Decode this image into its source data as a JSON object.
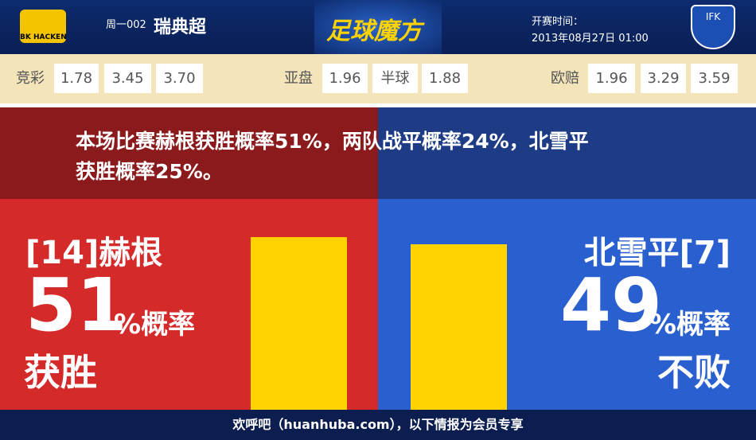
{
  "header": {
    "home_logo_text": "BK HACKEN",
    "match_code": "周一002",
    "league": "瑞典超",
    "brand": "足球魔方",
    "kickoff_label": "开赛时间：",
    "kickoff_time": "2013年08月27日 01:00",
    "away_logo_text": "IFK"
  },
  "odds": {
    "jingcai": {
      "label": "竞彩",
      "values": [
        "1.78",
        "3.45",
        "3.70"
      ]
    },
    "yapan": {
      "label": "亚盘",
      "values": [
        "1.96",
        "半球",
        "1.88"
      ]
    },
    "oupei": {
      "label": "欧赔",
      "values": [
        "1.96",
        "3.29",
        "3.59"
      ]
    }
  },
  "summary": {
    "lines": [
      "本场比赛赫根获胜概率51%，两队战平概率24%，北雪平",
      "获胜概率25%。"
    ]
  },
  "home": {
    "team": "[14]赫根",
    "percent": 51,
    "unit": "%概率",
    "outcome": "获胜"
  },
  "away": {
    "team": "北雪平[7]",
    "percent": 49,
    "unit": "%概率",
    "outcome": "不败"
  },
  "footer": {
    "text": "欢呼吧（huanhuba.com），以下情报为会员专享"
  }
}
